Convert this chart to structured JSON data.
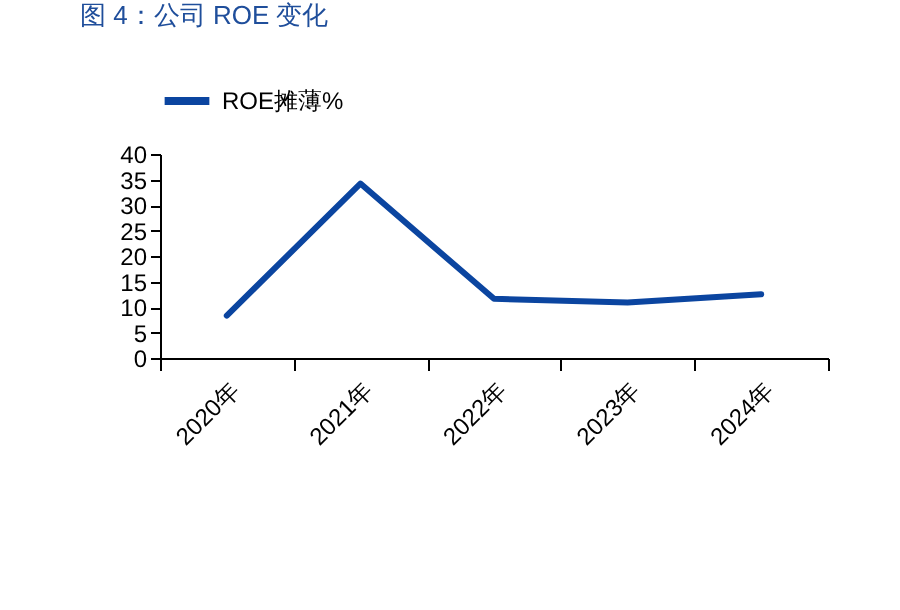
{
  "chart_data": {
    "type": "line",
    "title": "图 4：公司 ROE 变化",
    "categories": [
      "2020年",
      "2021年",
      "2022年",
      "2023年",
      "2024年"
    ],
    "series": [
      {
        "name": "ROE摊薄%",
        "color": "#0b45a0",
        "values": [
          8.3,
          34.2,
          11.6,
          10.9,
          12.5
        ]
      }
    ],
    "ylim": [
      0,
      40
    ],
    "yticks": [
      0,
      5,
      10,
      15,
      20,
      25,
      30,
      35,
      40
    ],
    "grid": false,
    "legend": "top",
    "marker": "none",
    "line_style": "solid"
  }
}
